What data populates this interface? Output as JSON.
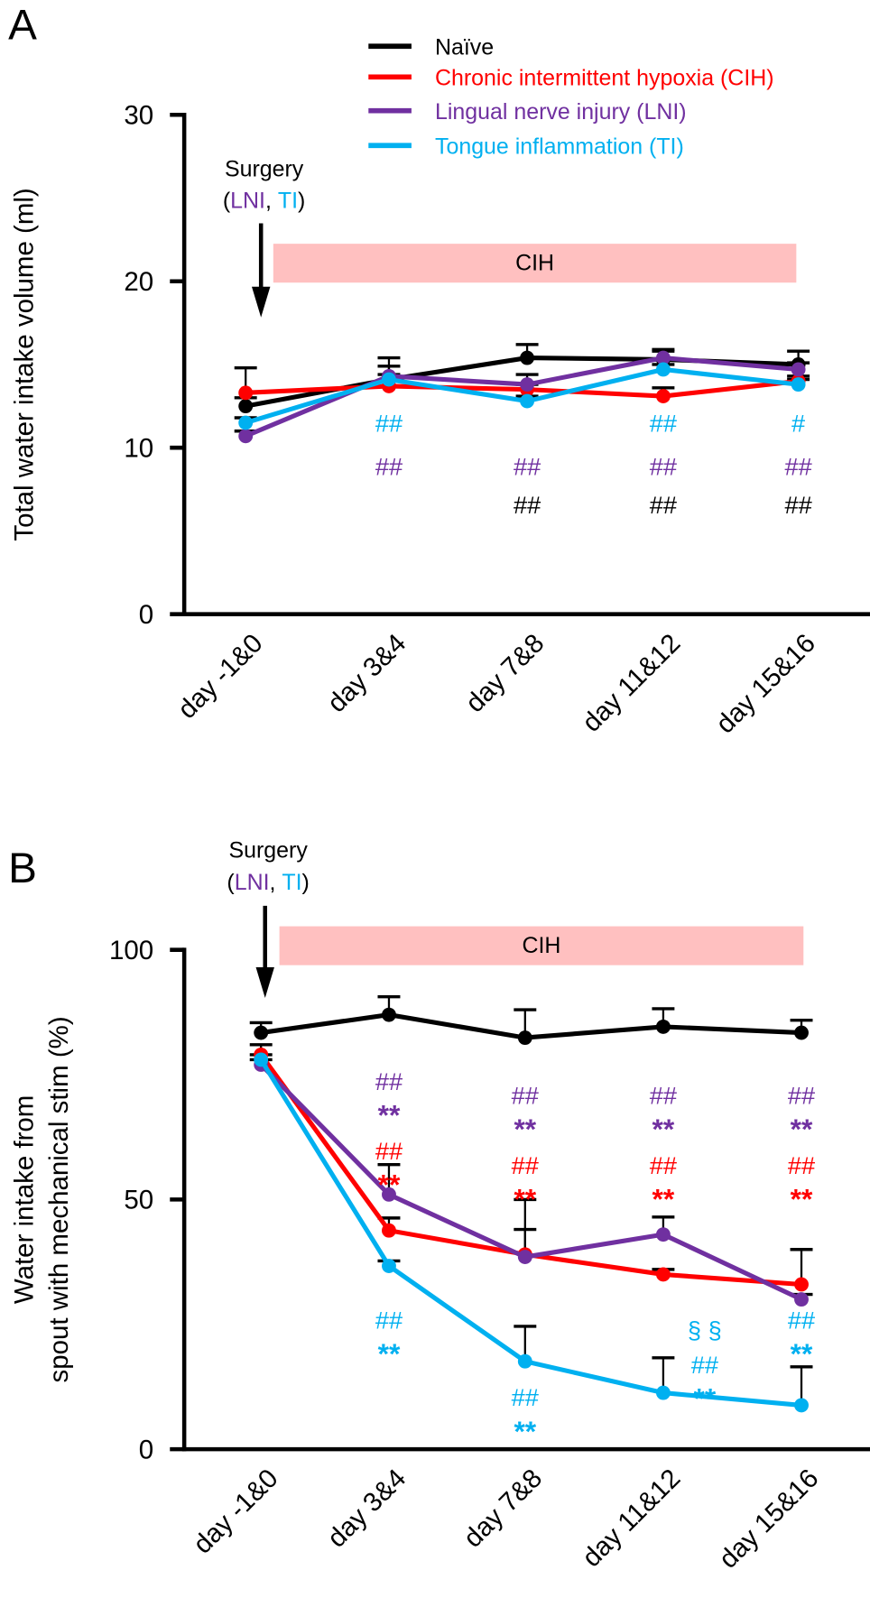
{
  "colors": {
    "naive": "#000000",
    "cih": "#ff0000",
    "lni": "#7030a0",
    "ti": "#00b0f0",
    "cih_bar": "#ffc0c0"
  },
  "legend": [
    {
      "label": "Naïve",
      "color": "#000000"
    },
    {
      "label": "Chronic intermittent hypoxia (CIH)",
      "color": "#ff0000"
    },
    {
      "label": "Lingual nerve injury (LNI)",
      "color": "#7030a0"
    },
    {
      "label": "Tongue inflammation (TI)",
      "color": "#00b0f0"
    }
  ],
  "surgery": {
    "label": "Surgery",
    "open": "(",
    "lni": "LNI",
    "sep": ", ",
    "ti": "TI",
    "close": ")"
  },
  "chart_data": [
    {
      "panel": "A",
      "type": "line",
      "ylabel": "Total water intake volume (ml)",
      "ylim": [
        0,
        30
      ],
      "yticks": [
        0,
        10,
        20,
        30
      ],
      "categories": [
        "day -1&0",
        "day 3&4",
        "day 7&8",
        "day 11&12",
        "day 15&16"
      ],
      "band_label": "CIH",
      "legend": "top-right",
      "series": [
        {
          "name": "Naïve",
          "color": "#000000",
          "values": [
            12.5,
            14.1,
            15.4,
            15.3,
            15.0
          ],
          "err": [
            0.5,
            1.3,
            0.8,
            0.6,
            0.8
          ]
        },
        {
          "name": "Chronic intermittent hypoxia (CIH)",
          "color": "#ff0000",
          "values": [
            13.3,
            13.7,
            13.5,
            13.1,
            14.0
          ],
          "err": [
            1.5,
            0.3,
            0.3,
            0.5,
            0.3
          ]
        },
        {
          "name": "Lingual nerve injury (LNI)",
          "color": "#7030a0",
          "values": [
            10.7,
            14.3,
            13.8,
            15.4,
            14.7
          ],
          "err": [
            0.3,
            0.6,
            0.6,
            0.4,
            0.4
          ]
        },
        {
          "name": "Tongue inflammation (TI)",
          "color": "#00b0f0",
          "values": [
            11.5,
            14.1,
            12.8,
            14.7,
            13.8
          ],
          "err": [
            0.3,
            0.3,
            0.3,
            0.3,
            0.3
          ]
        }
      ],
      "annotations": [
        {
          "cat": 1,
          "y": 11.5,
          "text": "##",
          "color": "#00b0f0"
        },
        {
          "cat": 1,
          "y": 8.9,
          "text": "##",
          "color": "#7030a0"
        },
        {
          "cat": 2,
          "y": 8.9,
          "text": "##",
          "color": "#7030a0"
        },
        {
          "cat": 2,
          "y": 6.6,
          "text": "##",
          "color": "#000000"
        },
        {
          "cat": 3,
          "y": 11.5,
          "text": "##",
          "color": "#00b0f0"
        },
        {
          "cat": 3,
          "y": 8.9,
          "text": "##",
          "color": "#7030a0"
        },
        {
          "cat": 3,
          "y": 6.6,
          "text": "##",
          "color": "#000000"
        },
        {
          "cat": 4,
          "y": 11.5,
          "text": "#",
          "color": "#00b0f0"
        },
        {
          "cat": 4,
          "y": 8.9,
          "text": "##",
          "color": "#7030a0"
        },
        {
          "cat": 4,
          "y": 6.6,
          "text": "##",
          "color": "#000000"
        }
      ]
    },
    {
      "panel": "B",
      "type": "line",
      "ylabel": [
        "Water intake from",
        "spout with mechanical stim  (%)"
      ],
      "ylim": [
        0,
        100
      ],
      "yticks": [
        0,
        50,
        100
      ],
      "categories": [
        "day -1&0",
        "day 3&4",
        "day 7&8",
        "day 11&12",
        "day 15&16"
      ],
      "band_label": "CIH",
      "series": [
        {
          "name": "Naïve",
          "color": "#000000",
          "values": [
            83.4,
            87.0,
            82.4,
            84.6,
            83.4
          ],
          "err": [
            2.0,
            3.6,
            5.6,
            3.6,
            2.5
          ]
        },
        {
          "name": "Chronic intermittent hypoxia (CIH)",
          "color": "#ff0000",
          "values": [
            79.0,
            43.8,
            39.0,
            35.0,
            33.0
          ],
          "err": [
            2.0,
            2.5,
            11.0,
            1.0,
            7.0
          ]
        },
        {
          "name": "Lingual nerve injury (LNI)",
          "color": "#7030a0",
          "values": [
            77.0,
            51.0,
            38.5,
            43.0,
            30.0
          ],
          "err": [
            1.0,
            6.0,
            5.5,
            3.5,
            1.0
          ]
        },
        {
          "name": "Tongue inflammation (TI)",
          "color": "#00b0f0",
          "values": [
            78.0,
            36.7,
            17.6,
            11.3,
            8.8
          ],
          "err": [
            1.0,
            1.0,
            7.0,
            7.0,
            7.7
          ]
        }
      ],
      "annotations": [
        {
          "cat": 1,
          "y": 73.8,
          "text": "##",
          "color": "#7030a0"
        },
        {
          "cat": 1,
          "y": 68.0,
          "text": "**",
          "color": "#7030a0"
        },
        {
          "cat": 1,
          "y": 64.8,
          "text": "##",
          "color": "#ff0000"
        },
        {
          "cat": 1,
          "y": 58.6,
          "text": "**",
          "color": "#ff0000"
        },
        {
          "cat": 1,
          "y": 26.0,
          "text": "##",
          "color": "#00b0f0"
        },
        {
          "cat": 1,
          "y": 20.0,
          "text": "**",
          "color": "#00b0f0"
        },
        {
          "cat": 2,
          "y": 71.0,
          "text": "##",
          "color": "#7030a0"
        },
        {
          "cat": 2,
          "y": 65.4,
          "text": "**",
          "color": "#7030a0"
        },
        {
          "cat": 2,
          "y": 57.0,
          "text": "##",
          "color": "#ff0000"
        },
        {
          "cat": 2,
          "y": 51.4,
          "text": "**",
          "color": "#ff0000"
        },
        {
          "cat": 2,
          "y": 10.5,
          "text": "##",
          "color": "#00b0f0"
        },
        {
          "cat": 2,
          "y": 4.9,
          "text": "**",
          "color": "#00b0f0"
        },
        {
          "cat": 3,
          "y": 71.0,
          "text": "##",
          "color": "#7030a0"
        },
        {
          "cat": 3,
          "y": 65.4,
          "text": "**",
          "color": "#7030a0"
        },
        {
          "cat": 3,
          "y": 57.0,
          "text": "##",
          "color": "#ff0000"
        },
        {
          "cat": 3,
          "y": 51.4,
          "text": "**",
          "color": "#ff0000"
        },
        {
          "cat": 3.3,
          "y": 24.0,
          "text": "§ §",
          "color": "#00b0f0"
        },
        {
          "cat": 3.3,
          "y": 18.6,
          "text": "##",
          "color": "#00b0f0"
        },
        {
          "cat": 3.3,
          "y": 13.0,
          "text": "**",
          "color": "#00b0f0"
        },
        {
          "cat": 4,
          "y": 71.0,
          "text": "##",
          "color": "#7030a0"
        },
        {
          "cat": 4,
          "y": 65.4,
          "text": "**",
          "color": "#7030a0"
        },
        {
          "cat": 4,
          "y": 57.0,
          "text": "##",
          "color": "#ff0000"
        },
        {
          "cat": 4,
          "y": 51.4,
          "text": "**",
          "color": "#ff0000"
        },
        {
          "cat": 4,
          "y": 26.0,
          "text": "##",
          "color": "#00b0f0"
        },
        {
          "cat": 4,
          "y": 20.0,
          "text": "**",
          "color": "#00b0f0"
        }
      ]
    }
  ]
}
